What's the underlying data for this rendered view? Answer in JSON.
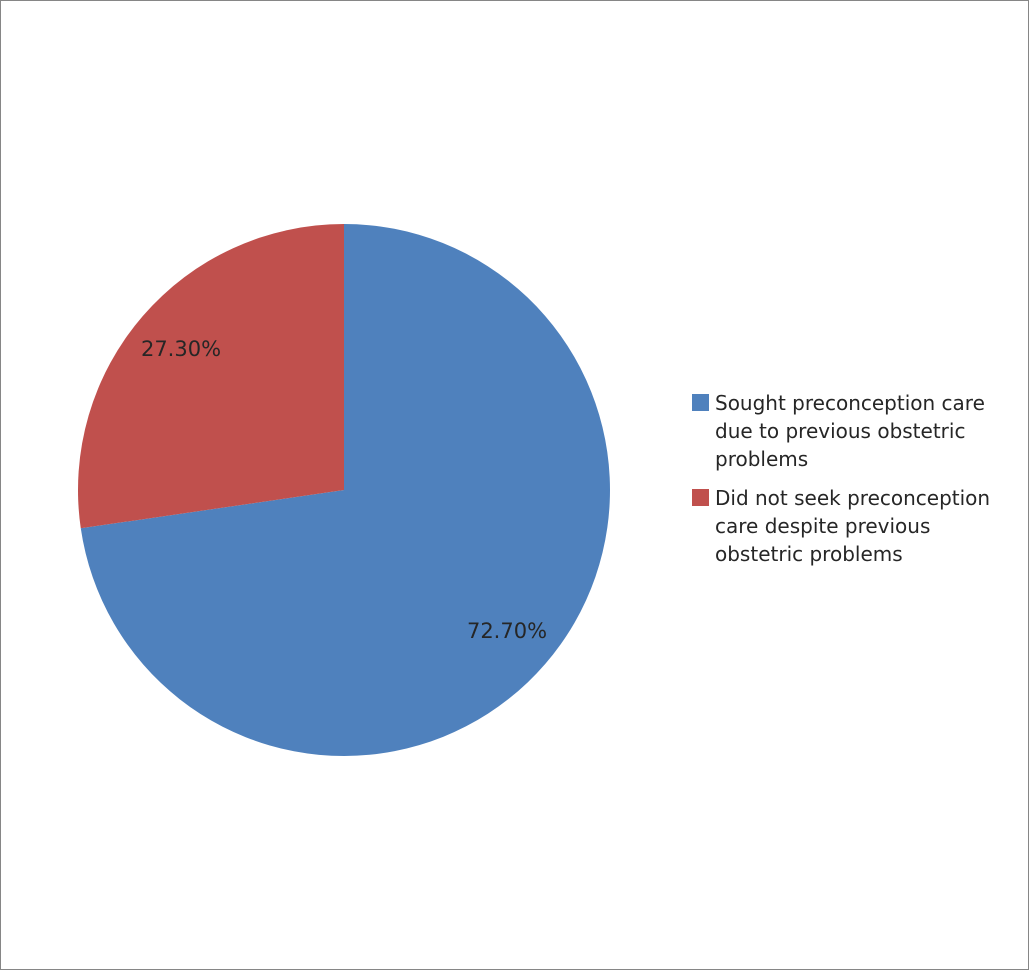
{
  "chart_data": {
    "type": "pie",
    "title": "",
    "slices": [
      {
        "label": "Sought preconception care due to previous obstetric problems",
        "value": 72.7,
        "display": "72.70%",
        "color": "#4F81BD"
      },
      {
        "label": "Did not seek preconception care despite previous obstetric problems",
        "value": 27.3,
        "display": "27.30%",
        "color": "#C0504D"
      }
    ],
    "legend_position": "right",
    "start_angle": "12 o'clock, clockwise"
  }
}
